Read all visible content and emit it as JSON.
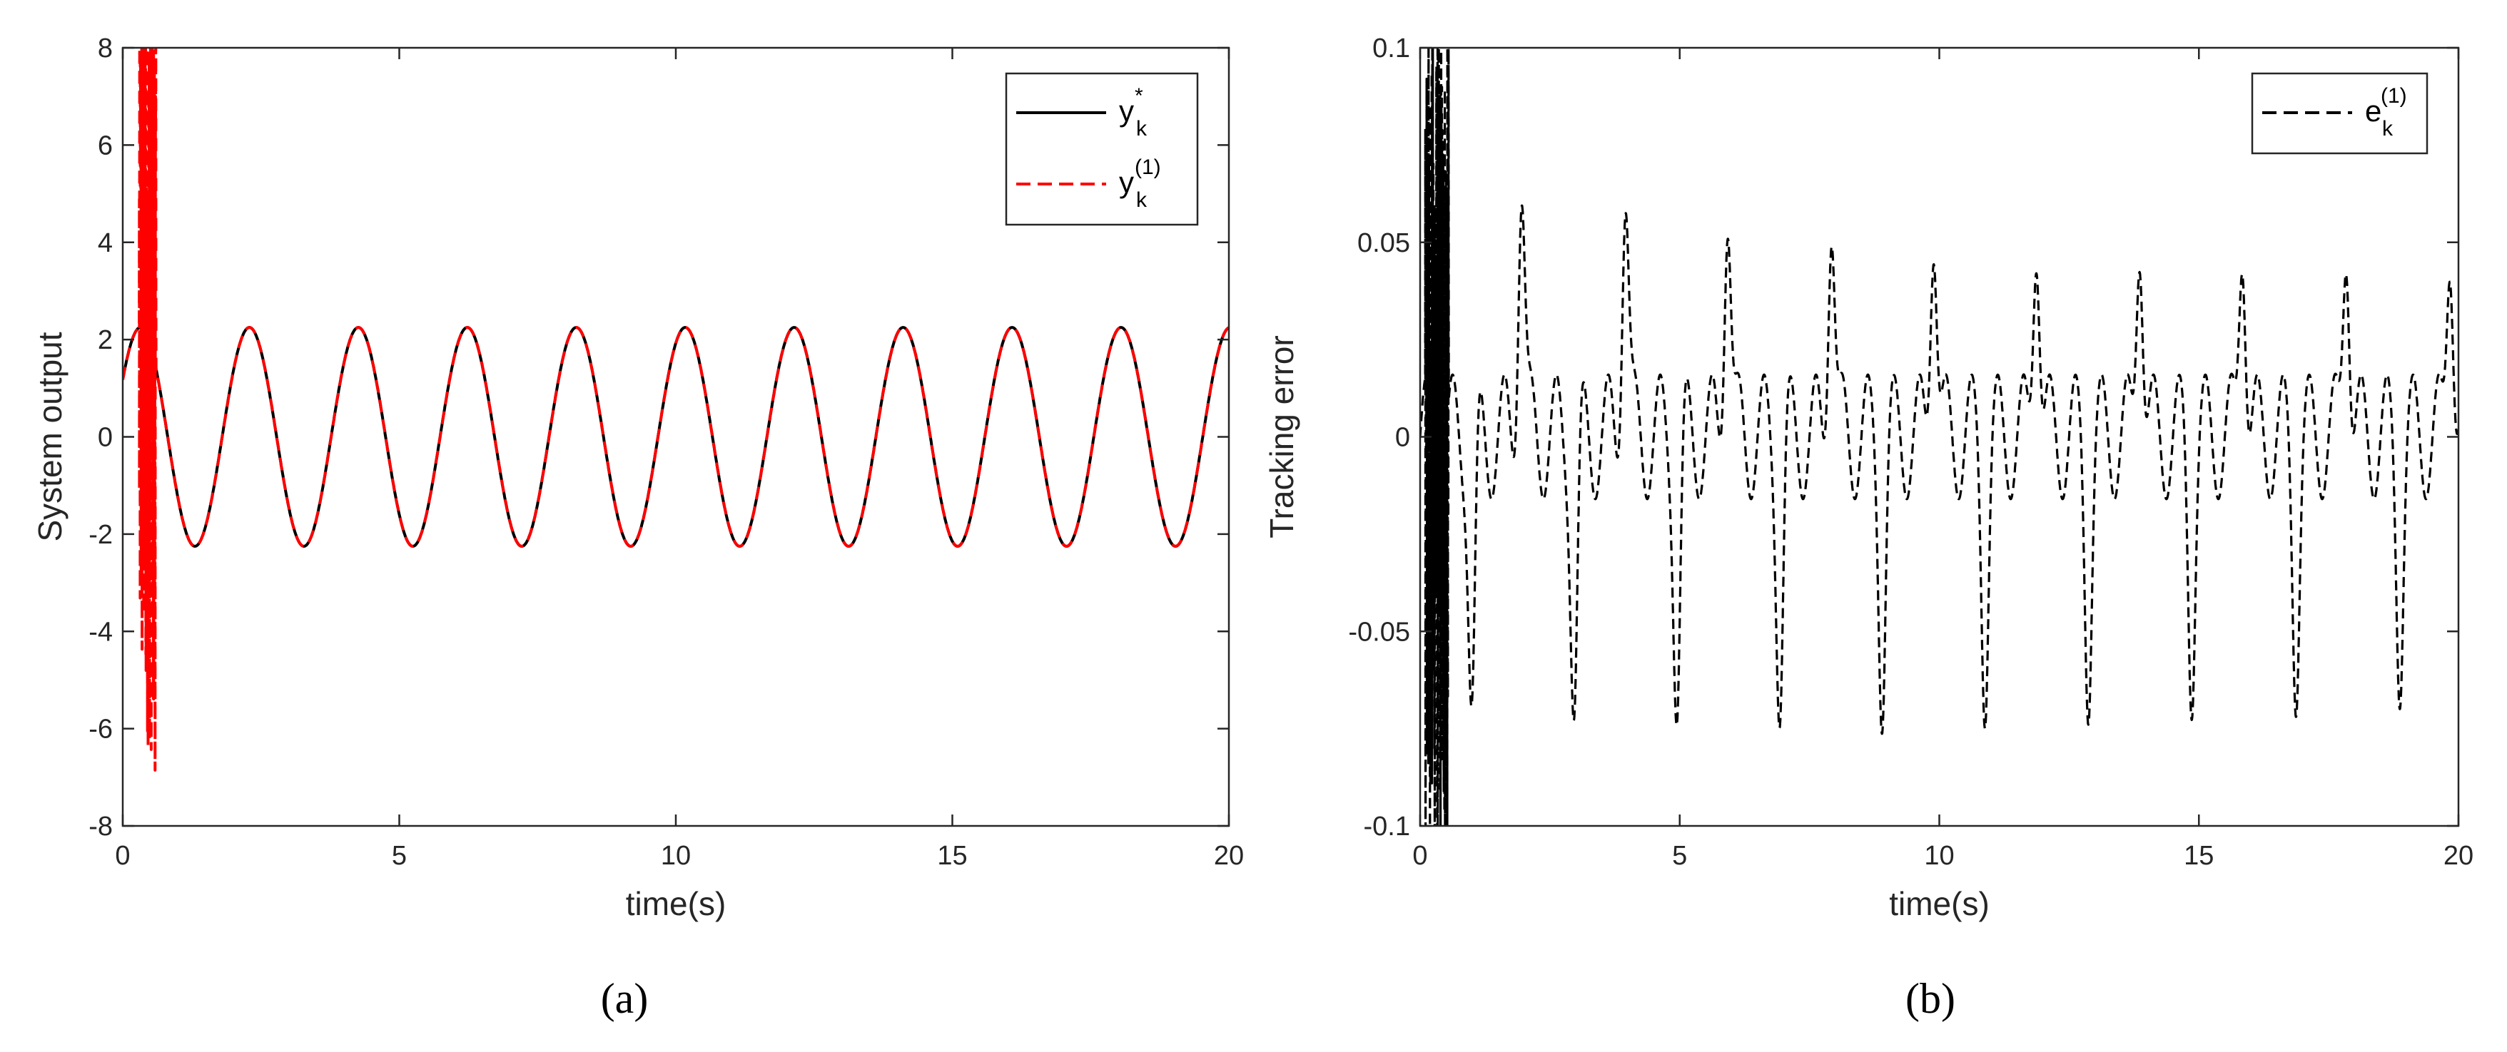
{
  "chart_data": [
    {
      "panel": "a",
      "panel_label": "(a)",
      "type": "line",
      "xlabel": "time(s)",
      "ylabel": "System output",
      "xlim": [
        0,
        20
      ],
      "ylim": [
        -8,
        8
      ],
      "xticks": [
        0,
        5,
        10,
        15,
        20
      ],
      "yticks": [
        -8,
        -6,
        -4,
        -2,
        0,
        2,
        4,
        6,
        8
      ],
      "xtick_labels": [
        "0",
        "5",
        "10",
        "15",
        "20"
      ],
      "ytick_labels": [
        "-8",
        "-6",
        "-4",
        "-2",
        "0",
        "2",
        "4",
        "6",
        "8"
      ],
      "legend_position": "top-right",
      "series": [
        {
          "name": "y_k^*",
          "legend_base": "y",
          "legend_sub": "k",
          "legend_sup": "*",
          "color": "#000000",
          "style": "solid",
          "model": {
            "form": "A*sin(2*pi*t/T + phi)",
            "A": 2.25,
            "T": 1.97,
            "phi": 0.55
          }
        },
        {
          "name": "y_k^(1)",
          "legend_base": "y",
          "legend_sub": "k",
          "legend_sup": "(1)",
          "color": "#ff0000",
          "style": "dashed",
          "transient": {
            "t_start": 0.3,
            "t_end": 0.6,
            "min": -8,
            "max": 8
          },
          "model": {
            "form": "tracks y_k^* after transient"
          }
        }
      ]
    },
    {
      "panel": "b",
      "panel_label": "(b)",
      "type": "line",
      "xlabel": "time(s)",
      "ylabel": "Tracking error",
      "xlim": [
        0,
        20
      ],
      "ylim": [
        -0.1,
        0.1
      ],
      "xticks": [
        0,
        5,
        10,
        15,
        20
      ],
      "yticks": [
        -0.1,
        -0.05,
        0,
        0.05,
        0.1
      ],
      "xtick_labels": [
        "0",
        "5",
        "10",
        "15",
        "20"
      ],
      "ytick_labels": [
        "-0.1",
        "-0.05",
        "0",
        "0.05",
        "0.1"
      ],
      "legend_position": "top-right",
      "series": [
        {
          "name": "e_k^(1)",
          "legend_base": "e",
          "legend_sub": "k",
          "legend_sup": "(1)",
          "color": "#000000",
          "style": "dashed",
          "transient": {
            "t_start": 0.1,
            "t_end": 0.55,
            "min": -0.1,
            "max": 0.1
          },
          "peaks": [
            {
              "t": 1.95,
              "v": 0.068
            },
            {
              "t": 3.95,
              "v": 0.066
            },
            {
              "t": 5.92,
              "v": 0.064
            },
            {
              "t": 7.92,
              "v": 0.062
            },
            {
              "t": 9.89,
              "v": 0.06
            },
            {
              "t": 11.87,
              "v": 0.058
            },
            {
              "t": 13.86,
              "v": 0.058
            },
            {
              "t": 15.84,
              "v": 0.056
            },
            {
              "t": 17.84,
              "v": 0.056
            },
            {
              "t": 19.84,
              "v": 0.054
            }
          ],
          "troughs": [
            {
              "t": 1.0,
              "v": -0.068
            },
            {
              "t": 2.97,
              "v": -0.066
            },
            {
              "t": 4.95,
              "v": -0.064
            },
            {
              "t": 6.93,
              "v": -0.062
            },
            {
              "t": 8.9,
              "v": -0.061
            },
            {
              "t": 10.88,
              "v": -0.059
            },
            {
              "t": 12.87,
              "v": -0.058
            },
            {
              "t": 14.86,
              "v": -0.057
            },
            {
              "t": 16.87,
              "v": -0.056
            },
            {
              "t": 18.87,
              "v": -0.054
            }
          ],
          "baseline_oscillation": {
            "amplitude": 0.016,
            "period": 0.5
          }
        }
      ]
    }
  ]
}
